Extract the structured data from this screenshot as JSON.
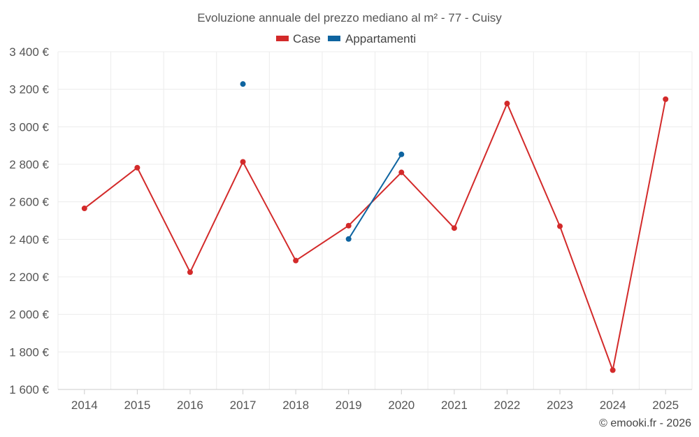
{
  "chart_data": {
    "type": "line",
    "title": "Evoluzione annuale del prezzo mediano al m² - 77 - Cuisy",
    "categories": [
      "2014",
      "2015",
      "2016",
      "2017",
      "2018",
      "2019",
      "2020",
      "2021",
      "2022",
      "2023",
      "2024",
      "2025"
    ],
    "ylim": [
      1600,
      3400
    ],
    "yticks": [
      1600,
      1800,
      2000,
      2200,
      2400,
      2600,
      2800,
      3000,
      3200,
      3400
    ],
    "ytick_labels": [
      "1 600 €",
      "1 800 €",
      "2 000 €",
      "2 200 €",
      "2 400 €",
      "2 600 €",
      "2 800 €",
      "3 000 €",
      "3 200 €",
      "3 400 €"
    ],
    "series": [
      {
        "name": "Case",
        "color": "#d32a2a",
        "values": [
          2565,
          2782,
          2225,
          2813,
          2287,
          2473,
          2757,
          2460,
          3124,
          2470,
          1703,
          3147
        ]
      },
      {
        "name": "Appartamenti",
        "color": "#0e64a0",
        "values": [
          null,
          null,
          null,
          3228,
          null,
          2402,
          2853,
          null,
          null,
          null,
          null,
          null
        ]
      }
    ],
    "legend_position": "top-center",
    "credit": "© emooki.fr - 2026"
  }
}
